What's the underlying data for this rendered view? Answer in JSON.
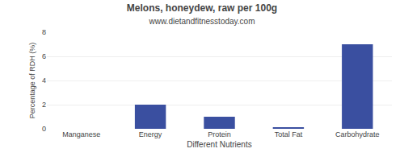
{
  "chart_data": {
    "type": "bar",
    "title": "Melons, honeydew, raw per 100g",
    "subtitle": "www.dietandfitnesstoday.com",
    "xlabel": "Different Nutrients",
    "ylabel": "Percentage of RDH (%)",
    "categories": [
      "Manganese",
      "Energy",
      "Protein",
      "Total Fat",
      "Carbohydrate"
    ],
    "values": [
      0.0,
      2.0,
      1.0,
      0.1,
      7.0
    ],
    "color": "#3a4fa0",
    "ylim": [
      0,
      8
    ],
    "yticks": [
      0,
      2,
      4,
      6,
      8
    ],
    "grid": true
  }
}
